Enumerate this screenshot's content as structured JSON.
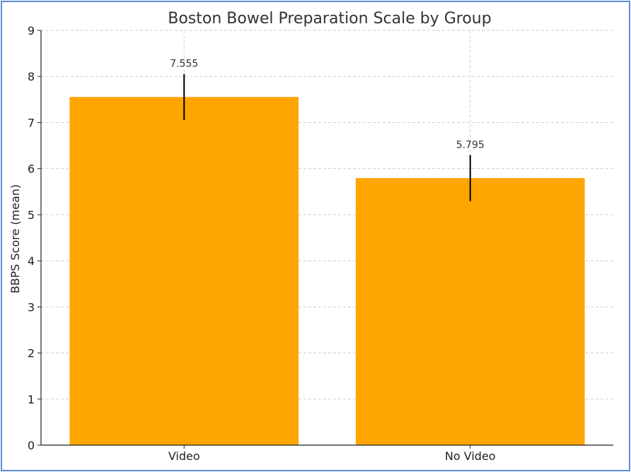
{
  "chart_data": {
    "type": "bar",
    "title": "Boston Bowel Preparation Scale by Group",
    "xlabel": "",
    "ylabel": "BBPS Score (mean)",
    "categories": [
      "Video",
      "No Video"
    ],
    "values": [
      7.555,
      5.795
    ],
    "value_labels": [
      "7.555",
      "5.795"
    ],
    "error": [
      0.5,
      0.5
    ],
    "ylim": [
      0,
      9
    ],
    "yticks": [
      0,
      1,
      2,
      3,
      4,
      5,
      6,
      7,
      8,
      9
    ],
    "grid": true,
    "bar_color": "#FFA500",
    "error_color": "#000000"
  }
}
